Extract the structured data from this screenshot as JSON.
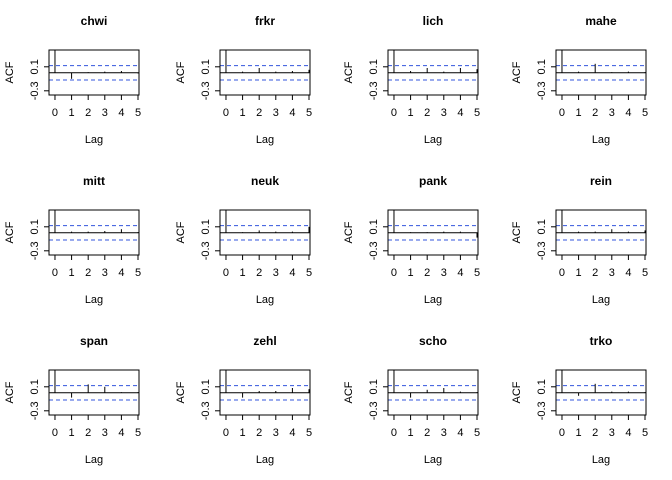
{
  "chart_data": [
    {
      "type": "acf",
      "title": "chwi",
      "x_label": "Lag",
      "y_label": "ACF",
      "x": [
        0,
        1,
        2,
        3,
        4,
        5
      ],
      "values": [
        1,
        -0.1,
        0.01,
        0.02,
        0.03,
        -0.01
      ],
      "ci": [
        0.12,
        -0.12
      ],
      "ci_color": "#3355dd",
      "xlim": [
        -0.36,
        5.06
      ],
      "ylim": [
        -0.37,
        0.38
      ],
      "xticks": [
        0,
        1,
        2,
        3,
        4,
        5
      ],
      "yticks": [
        -0.3,
        0.1
      ]
    },
    {
      "type": "acf",
      "title": "frkr",
      "x_label": "Lag",
      "y_label": "ACF",
      "x": [
        0,
        1,
        2,
        3,
        4,
        5
      ],
      "values": [
        1,
        0.02,
        0.08,
        0.02,
        0.03,
        0.05
      ],
      "ci": [
        0.12,
        -0.12
      ],
      "ci_color": "#3355dd",
      "xlim": [
        -0.36,
        5.06
      ],
      "ylim": [
        -0.37,
        0.38
      ],
      "xticks": [
        0,
        1,
        2,
        3,
        4,
        5
      ],
      "yticks": [
        -0.3,
        0.1
      ]
    },
    {
      "type": "acf",
      "title": "lich",
      "x_label": "Lag",
      "y_label": "ACF",
      "x": [
        0,
        1,
        2,
        3,
        4,
        5
      ],
      "values": [
        1,
        0.03,
        0.08,
        0.02,
        0.08,
        0.06
      ],
      "ci": [
        0.12,
        -0.12
      ],
      "ci_color": "#3355dd",
      "xlim": [
        -0.36,
        5.06
      ],
      "ylim": [
        -0.37,
        0.38
      ],
      "xticks": [
        0,
        1,
        2,
        3,
        4,
        5
      ],
      "yticks": [
        -0.3,
        0.1
      ]
    },
    {
      "type": "acf",
      "title": "mahe",
      "x_label": "Lag",
      "y_label": "ACF",
      "x": [
        0,
        1,
        2,
        3,
        4,
        5
      ],
      "values": [
        1,
        0.02,
        0.15,
        0.01,
        0.02,
        0.01
      ],
      "ci": [
        0.12,
        -0.12
      ],
      "ci_color": "#3355dd",
      "xlim": [
        -0.36,
        5.06
      ],
      "ylim": [
        -0.37,
        0.38
      ],
      "xticks": [
        0,
        1,
        2,
        3,
        4,
        5
      ],
      "yticks": [
        -0.3,
        0.1
      ]
    },
    {
      "type": "acf",
      "title": "mitt",
      "x_label": "Lag",
      "y_label": "ACF",
      "x": [
        0,
        1,
        2,
        3,
        4,
        5
      ],
      "values": [
        1,
        0.02,
        0.02,
        0.03,
        0.06,
        0.01
      ],
      "ci": [
        0.12,
        -0.12
      ],
      "ci_color": "#3355dd",
      "xlim": [
        -0.36,
        5.06
      ],
      "ylim": [
        -0.37,
        0.38
      ],
      "xticks": [
        0,
        1,
        2,
        3,
        4,
        5
      ],
      "yticks": [
        -0.3,
        0.1
      ]
    },
    {
      "type": "acf",
      "title": "neuk",
      "x_label": "Lag",
      "y_label": "ACF",
      "x": [
        0,
        1,
        2,
        3,
        4,
        5
      ],
      "values": [
        1,
        0.01,
        0.04,
        0.02,
        0.02,
        0.1
      ],
      "ci": [
        0.12,
        -0.12
      ],
      "ci_color": "#3355dd",
      "xlim": [
        -0.36,
        5.06
      ],
      "ylim": [
        -0.37,
        0.38
      ],
      "xticks": [
        0,
        1,
        2,
        3,
        4,
        5
      ],
      "yticks": [
        -0.3,
        0.1
      ]
    },
    {
      "type": "acf",
      "title": "pank",
      "x_label": "Lag",
      "y_label": "ACF",
      "x": [
        0,
        1,
        2,
        3,
        4,
        5
      ],
      "values": [
        1,
        0.01,
        0.01,
        0.02,
        0.02,
        -0.08
      ],
      "ci": [
        0.12,
        -0.12
      ],
      "ci_color": "#3355dd",
      "xlim": [
        -0.36,
        5.06
      ],
      "ylim": [
        -0.37,
        0.38
      ],
      "xticks": [
        0,
        1,
        2,
        3,
        4,
        5
      ],
      "yticks": [
        -0.3,
        0.1
      ]
    },
    {
      "type": "acf",
      "title": "rein",
      "x_label": "Lag",
      "y_label": "ACF",
      "x": [
        0,
        1,
        2,
        3,
        4,
        5
      ],
      "values": [
        1,
        0.02,
        0.02,
        0.06,
        0.02,
        0.04
      ],
      "ci": [
        0.12,
        -0.12
      ],
      "ci_color": "#3355dd",
      "xlim": [
        -0.36,
        5.06
      ],
      "ylim": [
        -0.37,
        0.38
      ],
      "xticks": [
        0,
        1,
        2,
        3,
        4,
        5
      ],
      "yticks": [
        -0.3,
        0.1
      ]
    },
    {
      "type": "acf",
      "title": "span",
      "x_label": "Lag",
      "y_label": "ACF",
      "x": [
        0,
        1,
        2,
        3,
        4,
        5
      ],
      "values": [
        1,
        -0.08,
        0.14,
        0.1,
        0.01,
        0.01
      ],
      "ci": [
        0.12,
        -0.12
      ],
      "ci_color": "#3355dd",
      "xlim": [
        -0.36,
        5.06
      ],
      "ylim": [
        -0.37,
        0.38
      ],
      "xticks": [
        0,
        1,
        2,
        3,
        4,
        5
      ],
      "yticks": [
        -0.3,
        0.1
      ]
    },
    {
      "type": "acf",
      "title": "zehl",
      "x_label": "Lag",
      "y_label": "ACF",
      "x": [
        0,
        1,
        2,
        3,
        4,
        5
      ],
      "values": [
        1,
        -0.08,
        0.03,
        0.03,
        0.08,
        0.06
      ],
      "ci": [
        0.12,
        -0.12
      ],
      "ci_color": "#3355dd",
      "xlim": [
        -0.36,
        5.06
      ],
      "ylim": [
        -0.37,
        0.38
      ],
      "xticks": [
        0,
        1,
        2,
        3,
        4,
        5
      ],
      "yticks": [
        -0.3,
        0.1
      ]
    },
    {
      "type": "acf",
      "title": "scho",
      "x_label": "Lag",
      "y_label": "ACF",
      "x": [
        0,
        1,
        2,
        3,
        4,
        5
      ],
      "values": [
        1,
        -0.08,
        0.05,
        0.08,
        0.02,
        0.01
      ],
      "ci": [
        0.12,
        -0.12
      ],
      "ci_color": "#3355dd",
      "xlim": [
        -0.36,
        5.06
      ],
      "ylim": [
        -0.37,
        0.38
      ],
      "xticks": [
        0,
        1,
        2,
        3,
        4,
        5
      ],
      "yticks": [
        -0.3,
        0.1
      ]
    },
    {
      "type": "acf",
      "title": "trko",
      "x_label": "Lag",
      "y_label": "ACF",
      "x": [
        0,
        1,
        2,
        3,
        4,
        5
      ],
      "values": [
        1,
        -0.05,
        0.15,
        0.02,
        0.02,
        0.01
      ],
      "ci": [
        0.12,
        -0.12
      ],
      "ci_color": "#3355dd",
      "xlim": [
        -0.36,
        5.06
      ],
      "ylim": [
        -0.37,
        0.38
      ],
      "xticks": [
        0,
        1,
        2,
        3,
        4,
        5
      ],
      "yticks": [
        -0.3,
        0.1
      ]
    }
  ]
}
